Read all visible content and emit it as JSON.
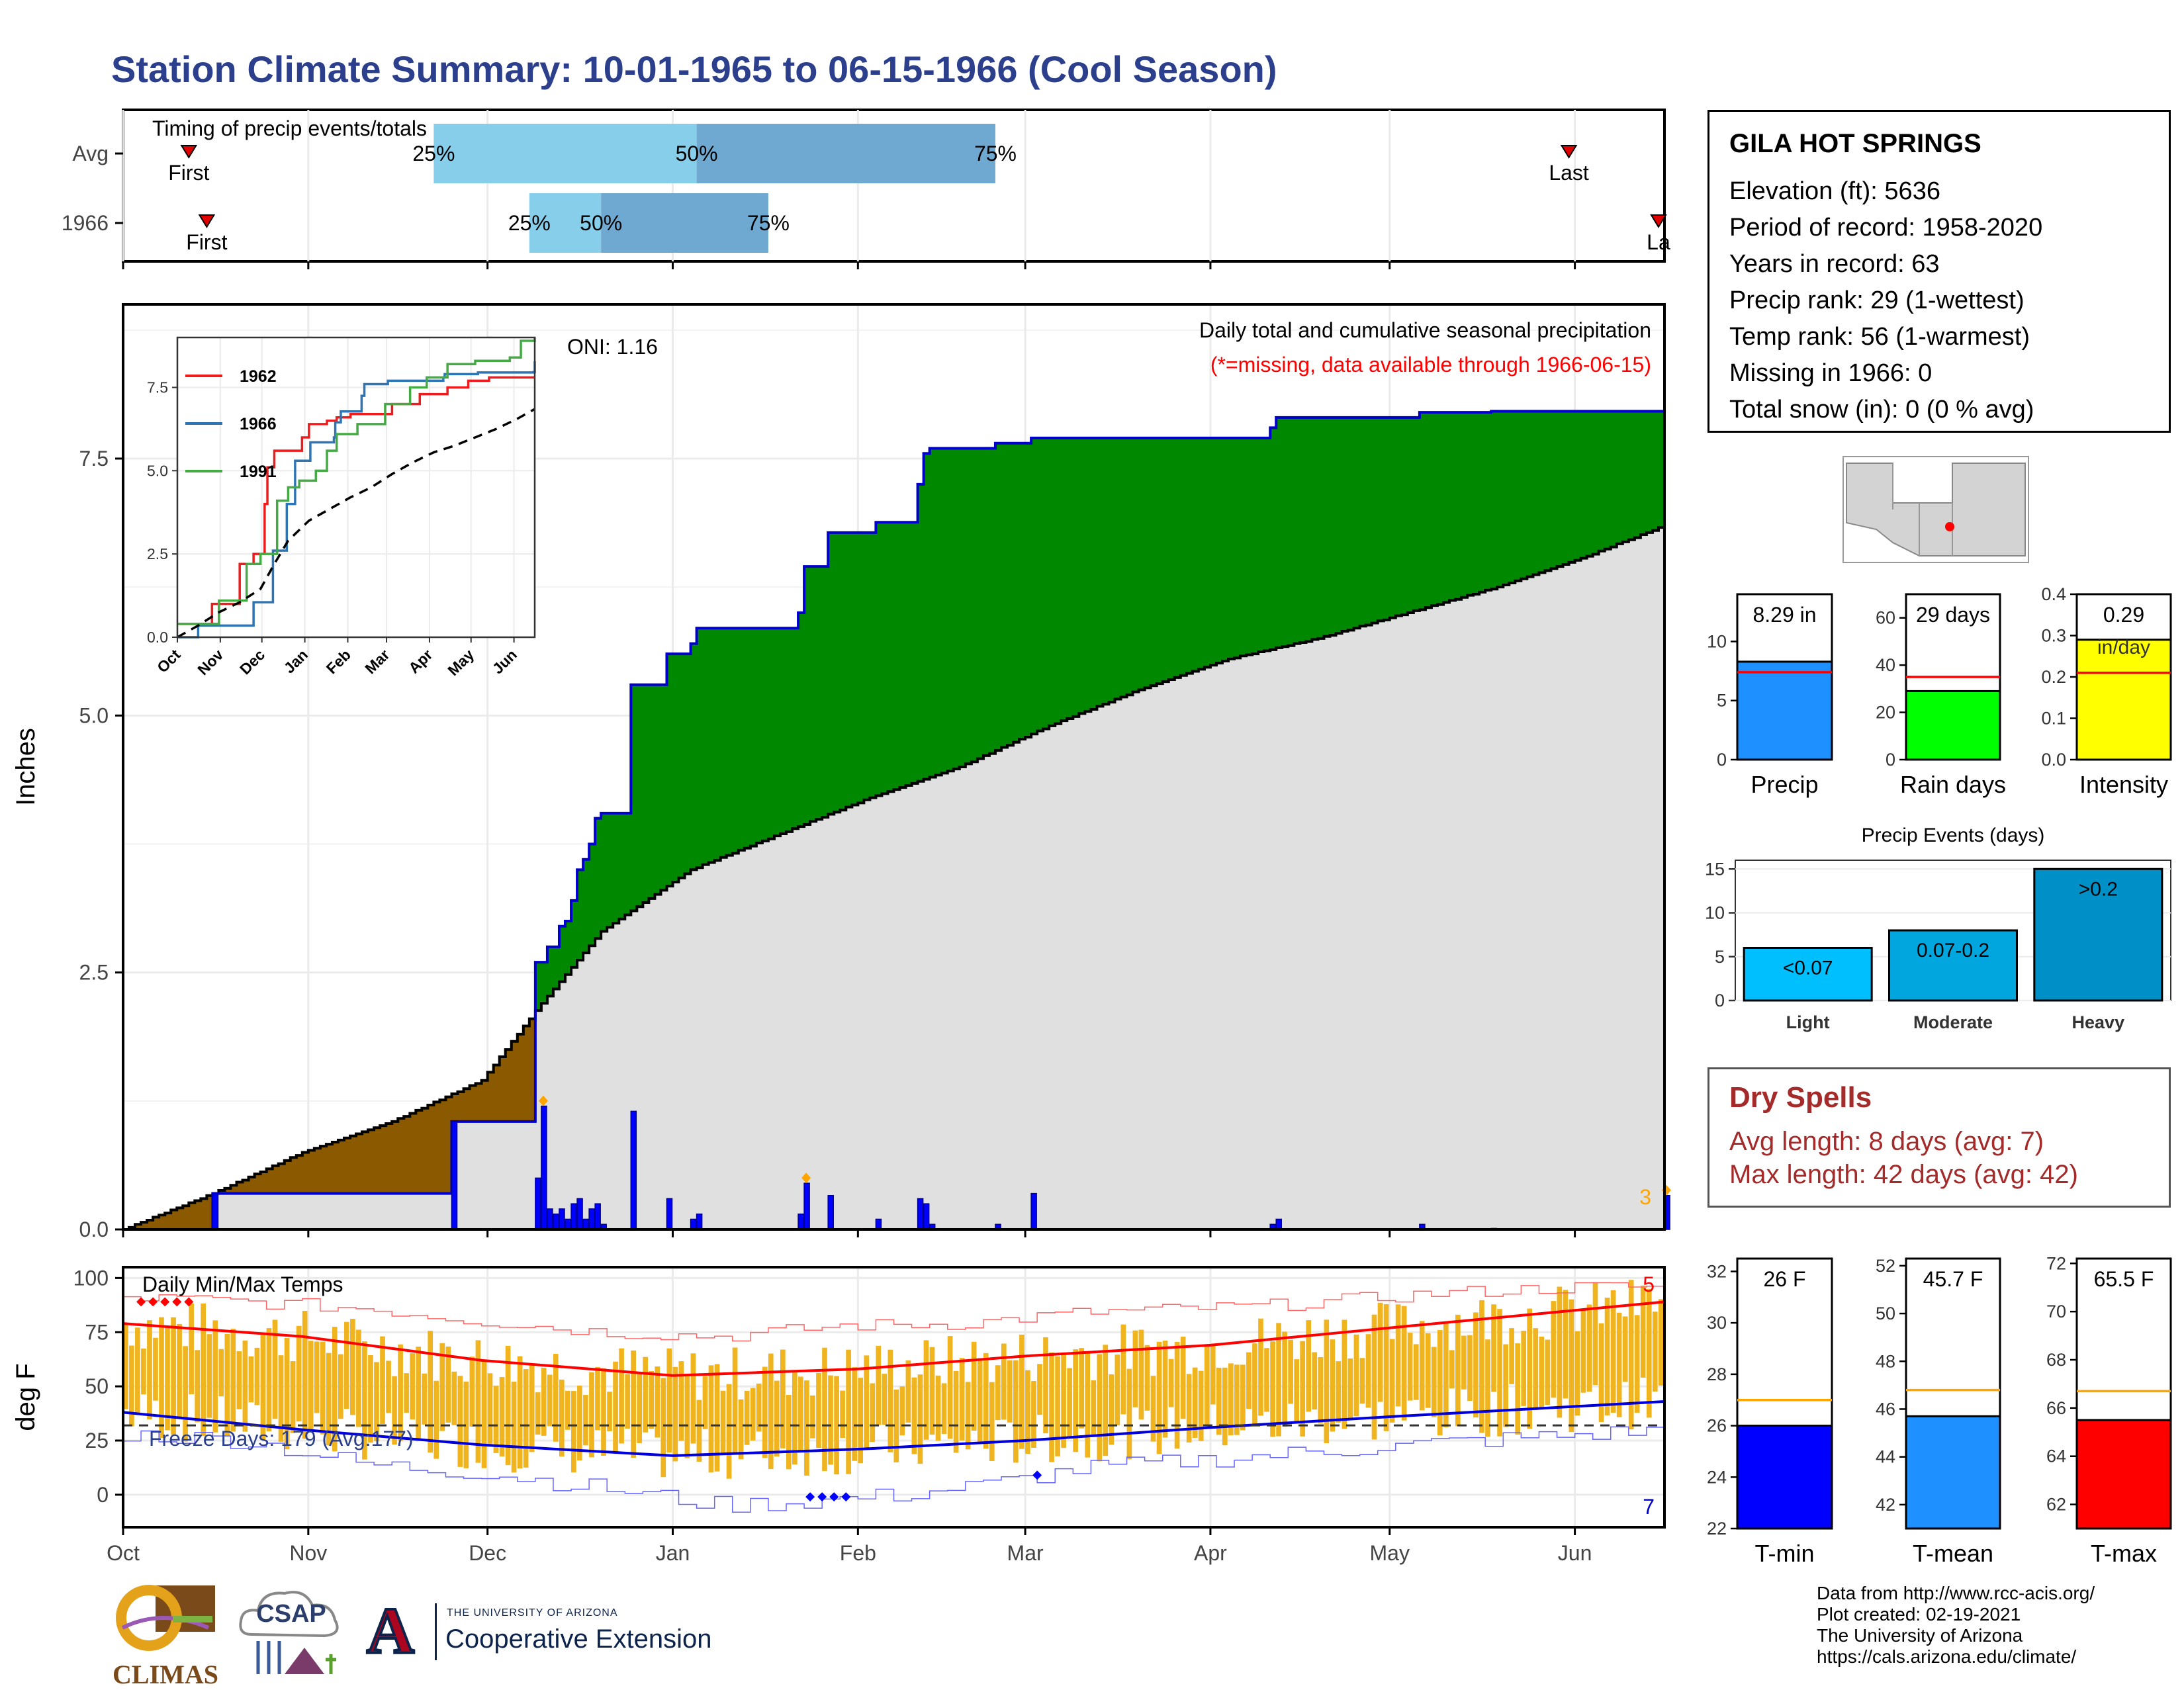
{
  "title": "Station Climate Summary: 10-01-1965 to 06-15-1966 (Cool Season)",
  "station": {
    "name": "GILA HOT SPRINGS",
    "lines": [
      "Elevation (ft): 5636",
      "Period of record: 1958-2020",
      "Years in record: 63",
      "Precip rank: 29 (1-wettest)",
      "Temp rank: 56 (1-warmest)",
      "Missing in 1966: 0",
      "Total snow (in): 0 (0 % avg)"
    ]
  },
  "dry_spells": {
    "title": "Dry Spells",
    "avg": "Avg length: 8 days (avg: 7)",
    "max": "Max length: 42 days (avg: 42)"
  },
  "credits": [
    "Data from http://www.rcc-acis.org/",
    "Plot created: 02-19-2021",
    "The University of Arizona",
    "https://cals.arizona.edu/climate/"
  ],
  "logos": {
    "climas": "CLIMAS",
    "csap": "CSAP",
    "ua_letter": "A",
    "ua_line1": "THE UNIVERSITY OF ARIZONA",
    "ua_line2": "Cooperative Extension"
  },
  "colors": {
    "cum_above": "#008800",
    "cum_below": "#8b5a00",
    "avg_fill": "#e0e0e0",
    "obs_line": "#0000cc",
    "tbar": "#f0b41e",
    "tmax_avg": "#ff0000",
    "tmin_avg": "#0000dd",
    "q_light": "#87ceeb",
    "q_dark": "#6fa8d0"
  },
  "chart_data": [
    {
      "type": "timeline",
      "panel": "timing",
      "label": "Timing of precip events/totals",
      "rows": [
        {
          "name": "Avg",
          "first": "Oct 12",
          "q25": "Nov 22",
          "q50": "Jan 5",
          "q75": "Feb 24",
          "last": "May 31",
          "first_label": "First",
          "last_label": "Last",
          "q25_label": "25%",
          "q50_label": "50%",
          "q75_label": "75%"
        },
        {
          "name": "1966",
          "first": "Oct 15",
          "q25": "Dec 8",
          "q50": "Dec 20",
          "q75": "Jan 17",
          "last": "Jun 15",
          "first_label": "First",
          "last_label": "La",
          "q25_label": "25%",
          "q50_label": "50%",
          "q75_label": "75%"
        }
      ]
    },
    {
      "type": "area",
      "panel": "precipitation",
      "ylabel": "Inches",
      "ylim": [
        0,
        9
      ],
      "yticks": [
        0.0,
        2.5,
        5.0,
        7.5
      ],
      "note_title": "Daily total and cumulative seasonal precipitation",
      "note_missing": "(*=missing, data available through 1966-06-15)",
      "oni": "ONI: 1.16",
      "corner_value": "3",
      "cumulative_observed": [
        [
          0,
          0
        ],
        [
          14,
          0
        ],
        [
          15,
          0.35
        ],
        [
          54,
          0.35
        ],
        [
          55,
          1.05
        ],
        [
          68,
          1.05
        ],
        [
          69,
          2.6
        ],
        [
          71,
          2.75
        ],
        [
          73,
          2.95
        ],
        [
          74,
          3.0
        ],
        [
          75,
          3.2
        ],
        [
          76,
          3.5
        ],
        [
          77,
          3.6
        ],
        [
          78,
          3.75
        ],
        [
          79,
          4.0
        ],
        [
          80,
          4.05
        ],
        [
          84,
          4.05
        ],
        [
          85,
          5.3
        ],
        [
          90,
          5.3
        ],
        [
          91,
          5.6
        ],
        [
          95,
          5.7
        ],
        [
          96,
          5.85
        ],
        [
          112,
          5.85
        ],
        [
          113,
          6.0
        ],
        [
          114,
          6.45
        ],
        [
          117,
          6.45
        ],
        [
          118,
          6.78
        ],
        [
          125,
          6.78
        ],
        [
          126,
          6.88
        ],
        [
          132,
          6.88
        ],
        [
          133,
          7.25
        ],
        [
          134,
          7.55
        ],
        [
          135,
          7.6
        ],
        [
          145,
          7.6
        ],
        [
          146,
          7.65
        ],
        [
          151,
          7.65
        ],
        [
          152,
          7.7
        ],
        [
          191,
          7.7
        ],
        [
          192,
          7.8
        ],
        [
          193,
          7.9
        ],
        [
          216,
          7.9
        ],
        [
          217,
          7.95
        ],
        [
          228,
          7.95
        ],
        [
          229,
          7.96
        ],
        [
          257,
          7.96
        ],
        [
          258,
          8.29
        ]
      ],
      "cumulative_average": [
        [
          0,
          0
        ],
        [
          15,
          0.35
        ],
        [
          30,
          0.75
        ],
        [
          45,
          1.05
        ],
        [
          60,
          1.45
        ],
        [
          70,
          2.2
        ],
        [
          80,
          2.9
        ],
        [
          95,
          3.5
        ],
        [
          110,
          3.85
        ],
        [
          125,
          4.2
        ],
        [
          140,
          4.5
        ],
        [
          155,
          4.9
        ],
        [
          170,
          5.25
        ],
        [
          185,
          5.55
        ],
        [
          200,
          5.75
        ],
        [
          215,
          6.0
        ],
        [
          230,
          6.25
        ],
        [
          245,
          6.55
        ],
        [
          258,
          6.85
        ]
      ],
      "daily_precip": [
        [
          15,
          0.35
        ],
        [
          55,
          1.05
        ],
        [
          69,
          0.5
        ],
        [
          70,
          1.2
        ],
        [
          71,
          0.2
        ],
        [
          72,
          0.15
        ],
        [
          73,
          0.2
        ],
        [
          74,
          0.1
        ],
        [
          75,
          0.25
        ],
        [
          76,
          0.3
        ],
        [
          77,
          0.1
        ],
        [
          78,
          0.2
        ],
        [
          79,
          0.25
        ],
        [
          80,
          0.05
        ],
        [
          85,
          1.15
        ],
        [
          91,
          0.3
        ],
        [
          95,
          0.1
        ],
        [
          96,
          0.15
        ],
        [
          113,
          0.15
        ],
        [
          114,
          0.45
        ],
        [
          118,
          0.33
        ],
        [
          126,
          0.1
        ],
        [
          133,
          0.3
        ],
        [
          134,
          0.25
        ],
        [
          135,
          0.05
        ],
        [
          146,
          0.05
        ],
        [
          152,
          0.35
        ],
        [
          192,
          0.05
        ],
        [
          193,
          0.1
        ],
        [
          217,
          0.05
        ],
        [
          229,
          0.01
        ],
        [
          258,
          0.33
        ]
      ],
      "missing_markers": [
        70,
        114,
        258
      ]
    },
    {
      "type": "line",
      "panel": "inset",
      "x_labels": [
        "Oct",
        "Nov",
        "Dec",
        "Jan",
        "Feb",
        "Mar",
        "Apr",
        "May",
        "Jun"
      ],
      "yticks": [
        0.0,
        2.5,
        5.0,
        7.5
      ],
      "ylim": [
        0,
        9
      ],
      "series": [
        {
          "name": "1962",
          "color": "#ee1c1c",
          "values": [
            [
              0,
              0.4
            ],
            [
              20,
              0.4
            ],
            [
              25,
              1.0
            ],
            [
              45,
              2.2
            ],
            [
              55,
              2.5
            ],
            [
              63,
              4.0
            ],
            [
              65,
              5.1
            ],
            [
              70,
              5.6
            ],
            [
              78,
              5.6
            ],
            [
              90,
              6.0
            ],
            [
              95,
              6.4
            ],
            [
              108,
              6.5
            ],
            [
              115,
              6.6
            ],
            [
              125,
              6.7
            ],
            [
              155,
              7.0
            ],
            [
              175,
              7.3
            ],
            [
              195,
              7.5
            ],
            [
              200,
              7.5
            ],
            [
              210,
              7.7
            ],
            [
              225,
              7.8
            ],
            [
              258,
              7.8
            ]
          ]
        },
        {
          "name": "1966",
          "color": "#2e75b6",
          "values": [
            [
              0,
              0
            ],
            [
              14,
              0
            ],
            [
              15,
              0.35
            ],
            [
              54,
              0.35
            ],
            [
              55,
              1.05
            ],
            [
              68,
              1.05
            ],
            [
              69,
              2.6
            ],
            [
              79,
              4.0
            ],
            [
              85,
              5.3
            ],
            [
              96,
              5.85
            ],
            [
              113,
              6.0
            ],
            [
              114,
              6.45
            ],
            [
              118,
              6.78
            ],
            [
              133,
              7.25
            ],
            [
              135,
              7.6
            ],
            [
              152,
              7.7
            ],
            [
              192,
              7.8
            ],
            [
              193,
              7.9
            ],
            [
              217,
              7.95
            ],
            [
              257,
              7.96
            ],
            [
              258,
              8.29
            ]
          ]
        },
        {
          "name": "1991",
          "color": "#44aa44",
          "values": [
            [
              0,
              0.4
            ],
            [
              20,
              0.4
            ],
            [
              30,
              1.1
            ],
            [
              50,
              2.2
            ],
            [
              60,
              2.5
            ],
            [
              72,
              4.1
            ],
            [
              80,
              4.5
            ],
            [
              88,
              4.7
            ],
            [
              100,
              5.0
            ],
            [
              108,
              5.6
            ],
            [
              115,
              6.1
            ],
            [
              130,
              6.4
            ],
            [
              150,
              7.0
            ],
            [
              168,
              7.5
            ],
            [
              180,
              7.8
            ],
            [
              195,
              8.2
            ],
            [
              215,
              8.3
            ],
            [
              240,
              8.4
            ],
            [
              248,
              8.9
            ],
            [
              258,
              9.0
            ]
          ]
        },
        {
          "name": "Avg",
          "color": "#000000",
          "dashed": true,
          "values": [
            [
              0,
              0
            ],
            [
              15,
              0.35
            ],
            [
              30,
              0.75
            ],
            [
              45,
              1.05
            ],
            [
              60,
              1.45
            ],
            [
              70,
              2.2
            ],
            [
              80,
              2.9
            ],
            [
              95,
              3.5
            ],
            [
              110,
              3.85
            ],
            [
              125,
              4.2
            ],
            [
              140,
              4.5
            ],
            [
              155,
              4.9
            ],
            [
              170,
              5.25
            ],
            [
              185,
              5.55
            ],
            [
              200,
              5.75
            ],
            [
              215,
              6.0
            ],
            [
              230,
              6.25
            ],
            [
              245,
              6.55
            ],
            [
              258,
              6.85
            ]
          ]
        }
      ]
    },
    {
      "type": "bar",
      "panel": "daily-temps",
      "title": "Daily Min/Max Temps",
      "ylabel": "deg F",
      "ylim": [
        -15,
        105
      ],
      "yticks": [
        0,
        25,
        50,
        75,
        100
      ],
      "x_labels": [
        "Oct",
        "Nov",
        "Dec",
        "Jan",
        "Feb",
        "Mar",
        "Apr",
        "May",
        "Jun"
      ],
      "freeze_label": "Freeze Days: 179 (Avg:177)",
      "freeze_line": 32,
      "top_count": "5",
      "bottom_count": "7",
      "tmax_avg": [
        [
          0,
          79
        ],
        [
          30,
          73
        ],
        [
          60,
          62
        ],
        [
          92,
          55
        ],
        [
          123,
          58
        ],
        [
          151,
          64
        ],
        [
          182,
          69
        ],
        [
          212,
          77
        ],
        [
          258,
          89
        ]
      ],
      "tmin_avg": [
        [
          0,
          38
        ],
        [
          30,
          30
        ],
        [
          60,
          23
        ],
        [
          92,
          18
        ],
        [
          123,
          21
        ],
        [
          151,
          25
        ],
        [
          182,
          31
        ],
        [
          212,
          36
        ],
        [
          258,
          43
        ]
      ],
      "tmax_record": [
        [
          0,
          91
        ],
        [
          20,
          89
        ],
        [
          40,
          86
        ],
        [
          60,
          80
        ],
        [
          80,
          75
        ],
        [
          100,
          73
        ],
        [
          120,
          78
        ],
        [
          140,
          79
        ],
        [
          160,
          84
        ],
        [
          190,
          87
        ],
        [
          220,
          93
        ],
        [
          245,
          96
        ],
        [
          258,
          96
        ]
      ],
      "tmin_record": [
        [
          0,
          28
        ],
        [
          20,
          25
        ],
        [
          40,
          14
        ],
        [
          60,
          10
        ],
        [
          80,
          3
        ],
        [
          100,
          -5
        ],
        [
          115,
          -3
        ],
        [
          130,
          0
        ],
        [
          145,
          5
        ],
        [
          160,
          12
        ],
        [
          190,
          18
        ],
        [
          220,
          24
        ],
        [
          258,
          30
        ]
      ]
    },
    {
      "type": "bar",
      "panel": "precip-total",
      "label": "Precip",
      "value": 8.29,
      "value_label": "8.29 in",
      "avg": 7.4,
      "ylim": [
        0,
        14
      ],
      "yticks": [
        0,
        5,
        10
      ],
      "color": "#1e90ff"
    },
    {
      "type": "bar",
      "panel": "rain-days",
      "label": "Rain days",
      "value": 29,
      "value_label": "29 days",
      "avg": 35,
      "ylim": [
        0,
        70
      ],
      "yticks": [
        0,
        20,
        40,
        60
      ],
      "color": "#00ff00"
    },
    {
      "type": "bar",
      "panel": "intensity",
      "label": "Intensity",
      "value": 0.29,
      "value_label": "0.29",
      "value_unit": "in/day",
      "avg": 0.21,
      "ylim": [
        0,
        0.4
      ],
      "yticks": [
        "0.0",
        "0.1",
        "0.2",
        "0.3",
        "0.4"
      ],
      "color": "#ffff00"
    },
    {
      "type": "bar",
      "panel": "precip-events",
      "title": "Precip Events (days)",
      "categories": [
        "Light",
        "Moderate",
        "Heavy"
      ],
      "values": [
        6,
        8,
        15
      ],
      "value_labels": [
        "<0.07",
        "0.07-0.2",
        ">0.2"
      ],
      "colors": [
        "#00bfff",
        "#00a6dd",
        "#0090c8"
      ],
      "ylim": [
        0,
        16
      ],
      "yticks": [
        0,
        5,
        10,
        15
      ]
    },
    {
      "type": "bar",
      "panel": "t-min",
      "label": "T-min",
      "value": 26,
      "value_label": "26 F",
      "avg": 27,
      "ylim": [
        22,
        32.5
      ],
      "yticks": [
        22,
        24,
        26,
        28,
        30,
        32
      ],
      "color": "#0000ff"
    },
    {
      "type": "bar",
      "panel": "t-mean",
      "label": "T-mean",
      "value": 45.7,
      "value_label": "45.7 F",
      "avg": 46.8,
      "ylim": [
        41,
        52.3
      ],
      "yticks": [
        42,
        44,
        46,
        48,
        50,
        52
      ],
      "color": "#1e90ff"
    },
    {
      "type": "bar",
      "panel": "t-max",
      "label": "T-max",
      "value": 65.5,
      "value_label": "65.5 F",
      "avg": 66.7,
      "ylim": [
        61,
        72.2
      ],
      "yticks": [
        62,
        64,
        66,
        68,
        70,
        72
      ],
      "color": "#ff0000"
    }
  ]
}
